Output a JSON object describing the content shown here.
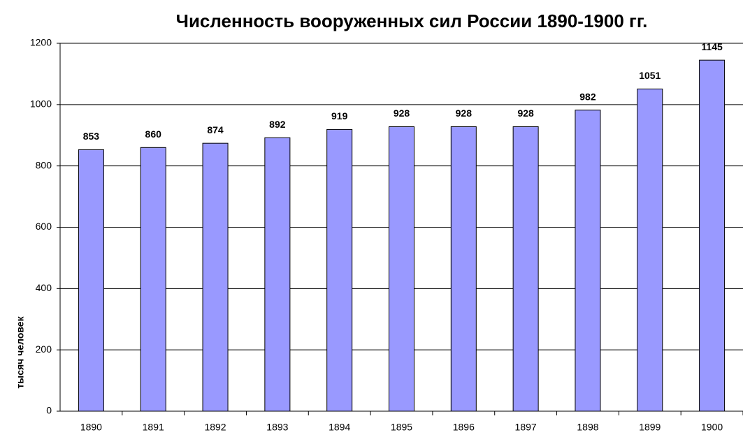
{
  "chart_data": {
    "type": "bar",
    "title": "Численность вооруженных сил России 1890-1900 гг.",
    "y_label": "тысяч человек",
    "categories": [
      "1890",
      "1891",
      "1892",
      "1893",
      "1894",
      "1895",
      "1896",
      "1897",
      "1898",
      "1899",
      "1900"
    ],
    "values": [
      853,
      860,
      874,
      892,
      919,
      928,
      928,
      928,
      982,
      1051,
      1145
    ],
    "color": "#9999ff",
    "ylim": [
      0,
      1200
    ],
    "yticks": [
      0,
      200,
      400,
      600,
      800,
      1000,
      1200
    ],
    "grid": true
  }
}
